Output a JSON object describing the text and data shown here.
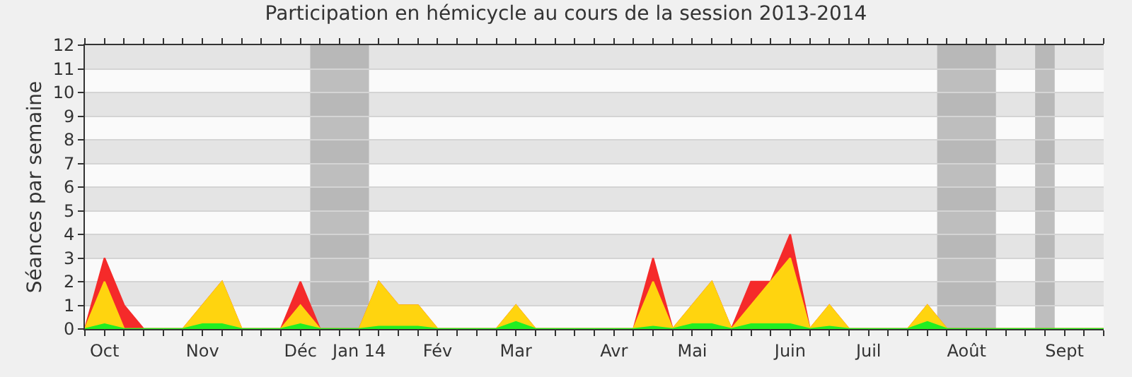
{
  "chart_data": {
    "type": "area",
    "title": "Participation en hémicycle au cours de la session 2013-2014",
    "ylabel": "Séances par semaine",
    "categories": [
      null,
      "Oct",
      null,
      null,
      null,
      null,
      "Nov",
      null,
      null,
      null,
      null,
      "Déc",
      null,
      null,
      "Jan 14",
      null,
      null,
      null,
      "Fév",
      null,
      null,
      null,
      "Mar",
      null,
      null,
      null,
      null,
      "Avr",
      null,
      null,
      null,
      "Mai",
      null,
      null,
      null,
      null,
      "Juin",
      null,
      null,
      null,
      "Juil",
      null,
      null,
      null,
      null,
      "Août",
      null,
      null,
      null,
      null,
      "Sept",
      null,
      null
    ],
    "series": [
      {
        "color": "#f52a2a",
        "values": [
          0,
          3,
          1,
          0,
          0,
          0,
          1,
          2,
          0,
          0,
          0,
          2,
          0,
          0,
          0,
          2,
          1,
          1,
          0,
          0,
          0,
          0,
          1,
          0,
          0,
          0,
          0,
          0,
          0,
          3,
          0,
          1,
          2,
          0,
          2,
          2,
          4,
          0,
          1,
          0,
          0,
          0,
          0,
          1,
          0,
          0,
          0,
          0,
          0,
          0,
          0,
          0,
          0
        ]
      },
      {
        "color": "#ffd40f",
        "values": [
          0,
          2,
          0,
          0,
          0,
          0,
          1,
          2,
          0,
          0,
          0,
          1,
          0,
          0,
          0,
          2,
          1,
          1,
          0,
          0,
          0,
          0,
          1,
          0,
          0,
          0,
          0,
          0,
          0,
          2,
          0,
          1,
          2,
          0,
          1,
          2,
          3,
          0,
          1,
          0,
          0,
          0,
          0,
          1,
          0,
          0,
          0,
          0,
          0,
          0,
          0,
          0,
          0
        ]
      },
      {
        "color": "#22ee22",
        "values": [
          0,
          0.2,
          0,
          0,
          0,
          0,
          0.2,
          0.2,
          0,
          0,
          0,
          0.2,
          0,
          0,
          0,
          0.1,
          0.1,
          0.1,
          0,
          0,
          0,
          0,
          0.3,
          0,
          0,
          0,
          0,
          0,
          0,
          0.1,
          0,
          0.2,
          0.2,
          0,
          0.2,
          0.2,
          0.2,
          0,
          0.1,
          0,
          0,
          0,
          0,
          0.3,
          0,
          0,
          0,
          0,
          0,
          0,
          0,
          0,
          0
        ]
      }
    ],
    "ylim": [
      0,
      12
    ],
    "yticks": [
      0,
      1,
      2,
      3,
      4,
      5,
      6,
      7,
      8,
      9,
      10,
      11,
      12
    ],
    "grid": "y"
  }
}
